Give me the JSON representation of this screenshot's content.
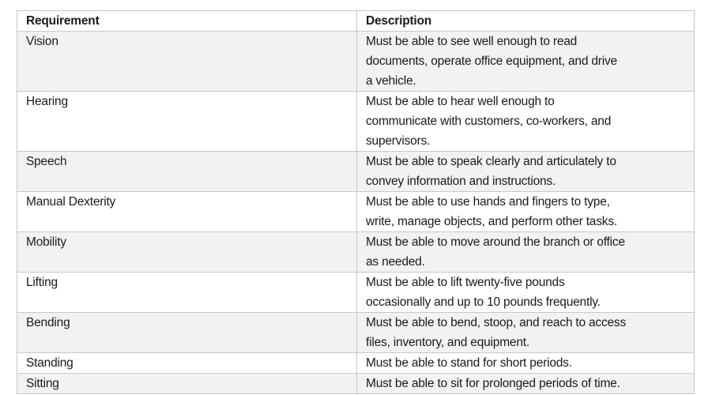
{
  "table": {
    "headers": [
      "Requirement",
      "Description"
    ],
    "rows": [
      {
        "requirement": "Vision",
        "description": [
          "Must be able to see well enough to read",
          "documents, operate office equipment, and drive",
          "a vehicle."
        ]
      },
      {
        "requirement": "Hearing",
        "description": [
          "Must be able to hear well enough to",
          "communicate with customers, co-workers, and",
          "supervisors."
        ]
      },
      {
        "requirement": "Speech",
        "description": [
          "Must be able to speak clearly and articulately to",
          "convey information and instructions."
        ]
      },
      {
        "requirement": "Manual Dexterity",
        "description": [
          "Must be able to use hands and fingers to type,",
          "write, manage objects, and perform other tasks."
        ]
      },
      {
        "requirement": "Mobility",
        "description": [
          "Must be able to move around the branch or office",
          "as needed."
        ]
      },
      {
        "requirement": "Lifting",
        "description": [
          "Must be able to lift twenty-five pounds",
          "occasionally and up to 10 pounds frequently."
        ]
      },
      {
        "requirement": "Bending",
        "description": [
          "Must be able to bend, stoop, and reach to access",
          "files, inventory, and equipment."
        ]
      },
      {
        "requirement": "Standing",
        "description": [
          "Must be able to stand for short periods."
        ]
      },
      {
        "requirement": "Sitting",
        "description": [
          "Must be able to sit for prolonged periods of time."
        ]
      }
    ]
  },
  "colors": {
    "shade": "#f2f2f2",
    "border": "#c8c8c8"
  }
}
